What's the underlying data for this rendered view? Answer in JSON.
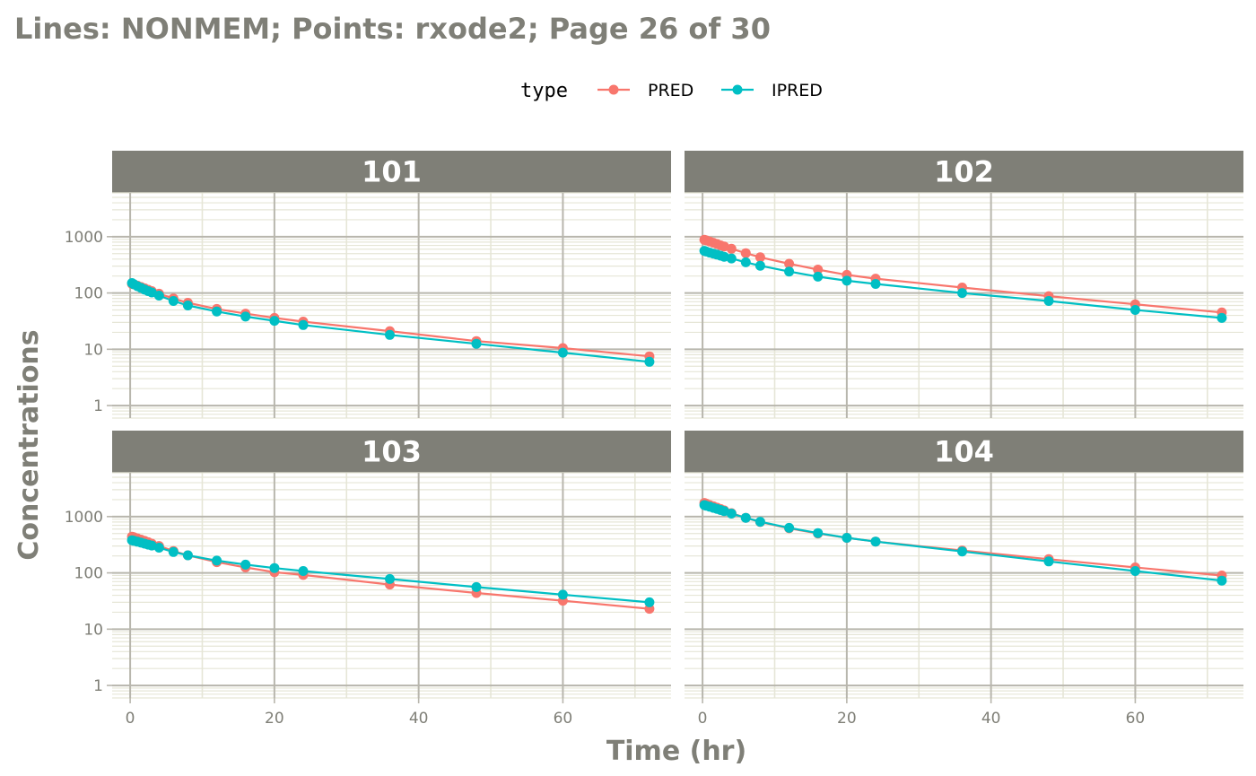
{
  "chart_data": {
    "type": "line",
    "title": "Lines: NONMEM; Points: rxode2; Page 26 of 30",
    "xlabel": "Time (hr)",
    "ylabel": "Concentrations",
    "xlim": [
      -2.5,
      75
    ],
    "ylim": [
      0.6,
      6000
    ],
    "y_scale": "log10",
    "x_ticks": [
      0,
      20,
      40,
      60
    ],
    "x_tick_labels": [
      "0",
      "20",
      "40",
      "60"
    ],
    "y_ticks": [
      1,
      10,
      100,
      1000
    ],
    "y_tick_labels": [
      "1",
      "10",
      "100",
      "1000"
    ],
    "grid": true,
    "legend": {
      "title": "type",
      "position": "top",
      "entries": [
        {
          "name": "PRED",
          "color": "#f8766d"
        },
        {
          "name": "IPRED",
          "color": "#00bfc4"
        }
      ]
    },
    "colors": {
      "strip_bg": "#7f7f77",
      "panel_bg": "#ffffff",
      "grid_major": "#b8b6ad",
      "grid_minor": "#e6e6d7",
      "text": "#7f7f77"
    },
    "times": [
      0.25,
      0.5,
      1,
      1.5,
      2,
      2.5,
      3,
      4,
      6,
      8,
      12,
      16,
      20,
      24,
      36,
      48,
      60,
      72
    ],
    "panels": [
      {
        "id": "101",
        "series": [
          {
            "name": "PRED",
            "values": [
              145,
              142,
              135,
              128,
              121,
              114,
              108,
              97,
              80,
              67,
              52,
              43,
              36,
              31,
              21,
              14,
              10.5,
              7.5
            ]
          },
          {
            "name": "IPRED",
            "values": [
              150,
              143,
              132,
              123,
              115,
              108,
              102,
              90,
              72,
              60,
              47,
              38,
              32,
              27,
              18,
              12.5,
              8.7,
              6.0
            ]
          }
        ]
      },
      {
        "id": "102",
        "series": [
          {
            "name": "PRED",
            "values": [
              880,
              860,
              820,
              780,
              740,
              700,
              670,
              610,
              510,
              430,
              330,
              260,
              210,
              180,
              125,
              88,
              63,
              45
            ]
          },
          {
            "name": "IPRED",
            "values": [
              560,
              545,
              520,
              500,
              480,
              460,
              440,
              410,
              350,
              305,
              240,
              195,
              165,
              145,
              100,
              72,
              50,
              36
            ]
          }
        ]
      },
      {
        "id": "103",
        "series": [
          {
            "name": "PRED",
            "values": [
              440,
              430,
              410,
              390,
              370,
              350,
              330,
              300,
              245,
              205,
              155,
              125,
              103,
              92,
              62,
              44,
              32,
              23
            ]
          },
          {
            "name": "IPRED",
            "values": [
              380,
              372,
              358,
              344,
              330,
              318,
              306,
              280,
              235,
              205,
              165,
              140,
              122,
              108,
              78,
              56,
              41,
              30
            ]
          }
        ]
      },
      {
        "id": "104",
        "series": [
          {
            "name": "PRED",
            "values": [
              1750,
              1700,
              1600,
              1520,
              1440,
              1360,
              1290,
              1150,
              950,
              800,
              620,
              500,
              420,
              360,
              250,
              175,
              125,
              90
            ]
          },
          {
            "name": "IPRED",
            "values": [
              1600,
              1560,
              1500,
              1430,
              1370,
              1310,
              1250,
              1130,
              950,
              810,
              630,
              510,
              420,
              360,
              240,
              160,
              108,
              73
            ]
          }
        ]
      }
    ]
  }
}
